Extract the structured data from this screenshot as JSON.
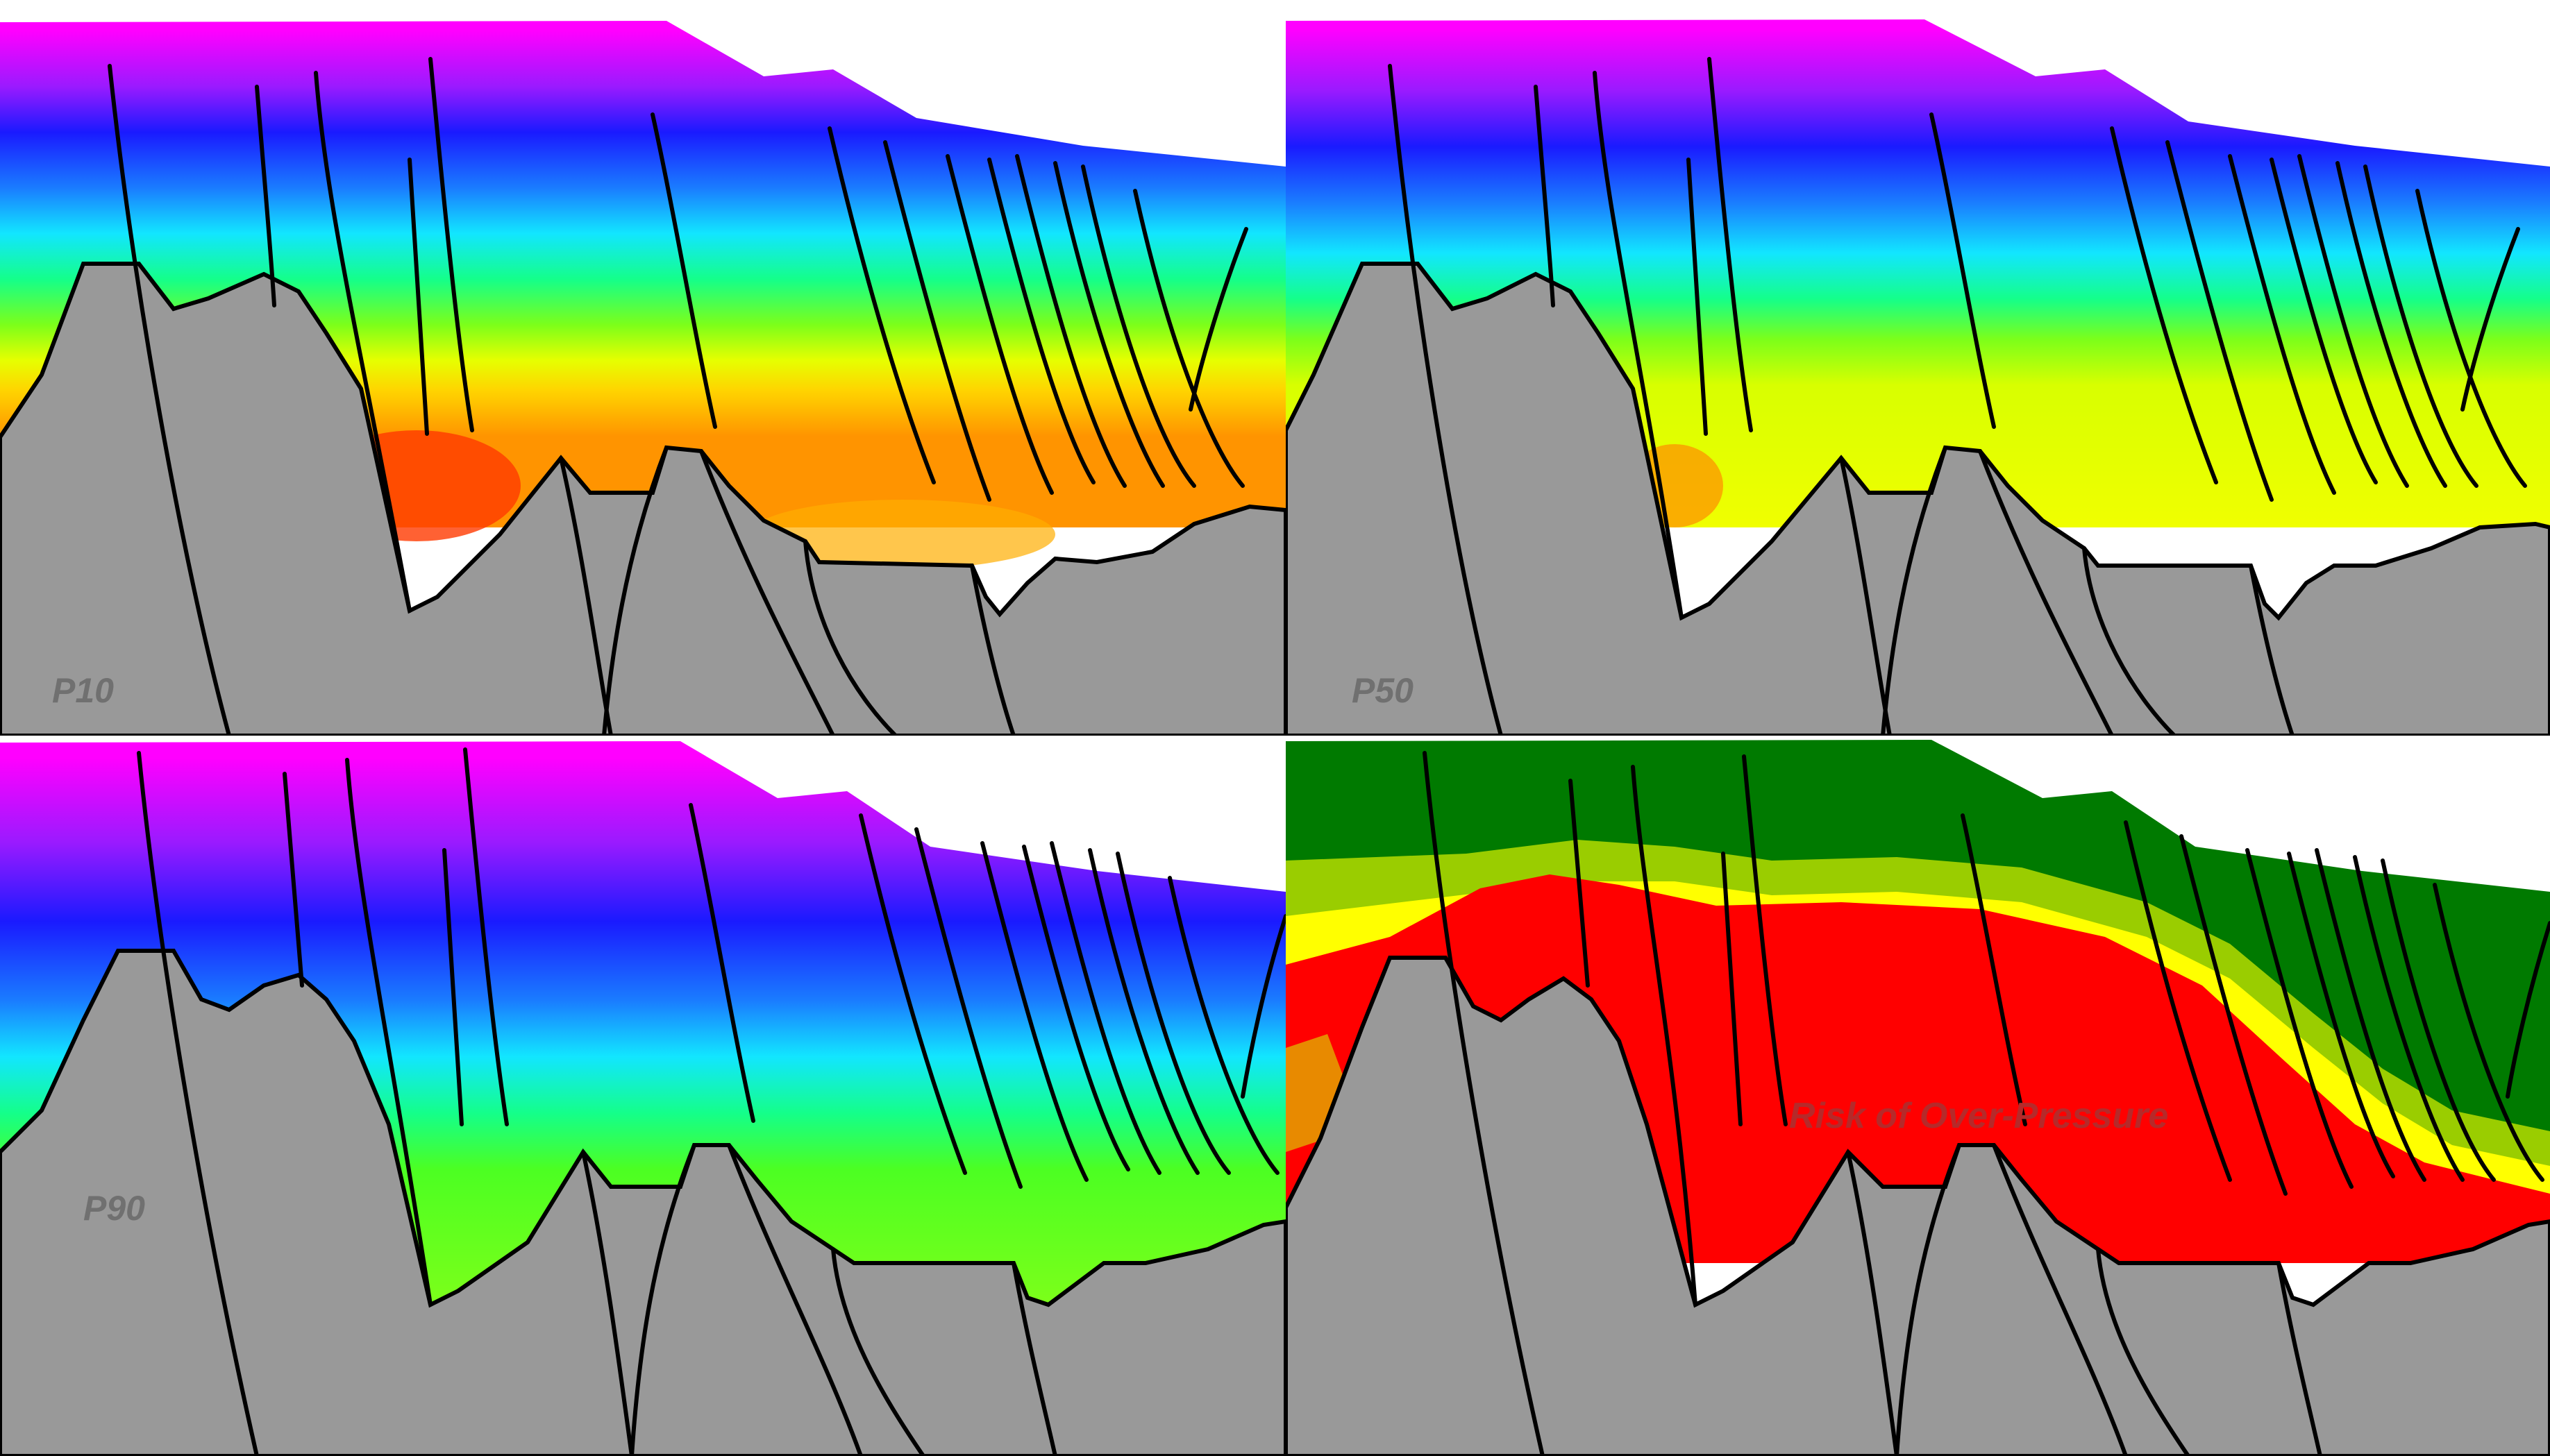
{
  "panels": [
    {
      "id": "p10",
      "label": "P10",
      "scheme": "a"
    },
    {
      "id": "p50",
      "label": "P50",
      "scheme": "b"
    },
    {
      "id": "p90",
      "label": "P90",
      "scheme": "c"
    },
    {
      "id": "risk",
      "label": "Risk of Over-Pressure",
      "scheme": "risk"
    }
  ],
  "colors": {
    "basement": "#999999",
    "fault_line": "#000000",
    "label_gray": "#707070",
    "risk_label": "#b52a2a"
  }
}
